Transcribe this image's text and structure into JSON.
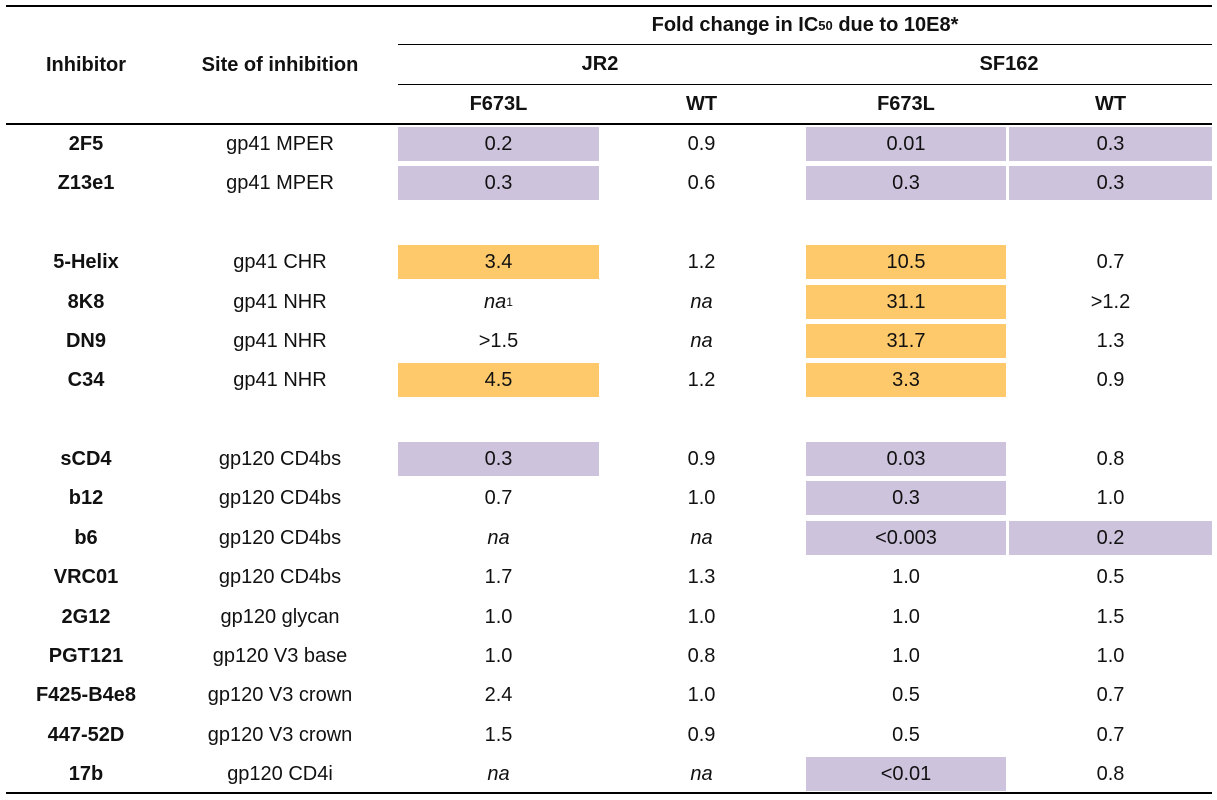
{
  "colors": {
    "decrease": "#cdc3dd",
    "increase": "#fdc96a",
    "text": "#111111",
    "rule": "#000000"
  },
  "header": {
    "inhibitor": "Inhibitor",
    "site": "Site of inhibition",
    "fold_prefix": "Fold change in IC",
    "fold_sub": "50",
    "fold_suffix": " due to 10E8*",
    "jr2": "JR2",
    "sf162": "SF162",
    "jr2_f673l": "F673L",
    "jr2_wt": "WT",
    "sf162_f673l": "F673L",
    "sf162_wt": "WT"
  },
  "rows": [
    {
      "inhibitor": "2F5",
      "site": "gp41 MPER",
      "v": [
        "0.2",
        "0.9",
        "0.01",
        "0.3"
      ],
      "shade": [
        "decrease",
        "",
        "decrease",
        "decrease"
      ]
    },
    {
      "inhibitor": "Z13e1",
      "site": "gp41 MPER",
      "v": [
        "0.3",
        "0.6",
        "0.3",
        "0.3"
      ],
      "shade": [
        "decrease",
        "",
        "decrease",
        "decrease"
      ]
    },
    {
      "inhibitor": "5-Helix",
      "site": "gp41 CHR",
      "v": [
        "3.4",
        "1.2",
        "10.5",
        "0.7"
      ],
      "shade": [
        "increase",
        "",
        "increase",
        ""
      ]
    },
    {
      "inhibitor": "8K8",
      "site": "gp41 NHR",
      "v": [
        "na",
        "na",
        "31.1",
        ">1.2"
      ],
      "shade": [
        "",
        "",
        "increase",
        ""
      ],
      "sup0": "1"
    },
    {
      "inhibitor": "DN9",
      "site": "gp41 NHR",
      "v": [
        ">1.5",
        "na",
        "31.7",
        "1.3"
      ],
      "shade": [
        "",
        "",
        "increase",
        ""
      ]
    },
    {
      "inhibitor": "C34",
      "site": "gp41 NHR",
      "v": [
        "4.5",
        "1.2",
        "3.3",
        "0.9"
      ],
      "shade": [
        "increase",
        "",
        "increase",
        ""
      ]
    },
    {
      "inhibitor": "sCD4",
      "site": "gp120 CD4bs",
      "v": [
        "0.3",
        "0.9",
        "0.03",
        "0.8"
      ],
      "shade": [
        "decrease",
        "",
        "decrease",
        ""
      ]
    },
    {
      "inhibitor": "b12",
      "site": "gp120 CD4bs",
      "v": [
        "0.7",
        "1.0",
        "0.3",
        "1.0"
      ],
      "shade": [
        "",
        "",
        "decrease",
        ""
      ]
    },
    {
      "inhibitor": "b6",
      "site": "gp120 CD4bs",
      "v": [
        "na",
        "na",
        "<0.003",
        "0.2"
      ],
      "shade": [
        "",
        "",
        "decrease",
        "decrease"
      ]
    },
    {
      "inhibitor": "VRC01",
      "site": "gp120 CD4bs",
      "v": [
        "1.7",
        "1.3",
        "1.0",
        "0.5"
      ],
      "shade": [
        "",
        "",
        "",
        ""
      ]
    },
    {
      "inhibitor": "2G12",
      "site": "gp120 glycan",
      "v": [
        "1.0",
        "1.0",
        "1.0",
        "1.5"
      ],
      "shade": [
        "",
        "",
        "",
        ""
      ]
    },
    {
      "inhibitor": "PGT121",
      "site": "gp120 V3 base",
      "v": [
        "1.0",
        "0.8",
        "1.0",
        "1.0"
      ],
      "shade": [
        "",
        "",
        "",
        ""
      ]
    },
    {
      "inhibitor": "F425-B4e8",
      "site": "gp120 V3 crown",
      "v": [
        "2.4",
        "1.0",
        "0.5",
        "0.7"
      ],
      "shade": [
        "",
        "",
        "",
        ""
      ]
    },
    {
      "inhibitor": "447-52D",
      "site": "gp120 V3 crown",
      "v": [
        "1.5",
        "0.9",
        "0.5",
        "0.7"
      ],
      "shade": [
        "",
        "",
        "",
        ""
      ]
    },
    {
      "inhibitor": "17b",
      "site": "gp120 CD4i",
      "v": [
        "na",
        "na",
        "<0.01",
        "0.8"
      ],
      "shade": [
        "",
        "",
        "decrease",
        ""
      ]
    }
  ]
}
